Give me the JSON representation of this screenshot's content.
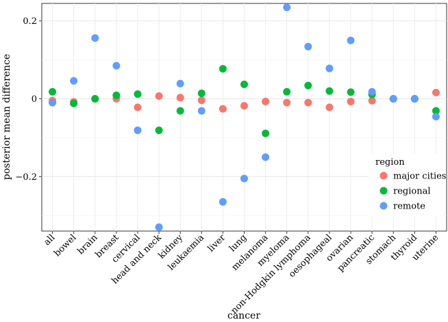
{
  "chart_data": {
    "type": "scatter",
    "title": "",
    "xlabel": "cancer",
    "ylabel": "posterior mean difference",
    "ylim": [
      -0.34,
      0.245
    ],
    "yticks": [
      -0.2,
      0,
      0.2
    ],
    "ytick_labels": [
      "−0.2",
      "0",
      "0.2"
    ],
    "grid": true,
    "legend_position": "right-inside",
    "legend_title": "region",
    "categories": [
      "all",
      "bowel",
      "brain",
      "breast",
      "cervical",
      "head and neck",
      "kidney",
      "leukaemia",
      "liver",
      "lung",
      "melanoma",
      "myeloma",
      "non-Hodgkin lymphoma",
      "oesophageal",
      "ovarian",
      "pancreatic",
      "stomach",
      "thyroid",
      "uterine"
    ],
    "series": [
      {
        "name": "major cities",
        "color": "#F8766D",
        "values": [
          -0.005,
          -0.008,
          0.0,
          0.0,
          -0.022,
          0.007,
          0.003,
          -0.004,
          -0.026,
          -0.018,
          -0.007,
          -0.01,
          -0.01,
          -0.022,
          -0.007,
          -0.005,
          0.0,
          0.0,
          0.016
        ]
      },
      {
        "name": "regional",
        "color": "#00BA38",
        "values": [
          0.018,
          -0.012,
          0.0,
          0.009,
          0.012,
          -0.081,
          -0.031,
          0.014,
          0.077,
          0.037,
          -0.089,
          0.018,
          0.034,
          0.02,
          0.017,
          0.011,
          0.0,
          0.0,
          -0.031
        ]
      },
      {
        "name": "remote",
        "color": "#619CFF",
        "values": [
          -0.01,
          0.046,
          0.156,
          0.085,
          -0.081,
          -0.33,
          0.039,
          -0.031,
          -0.265,
          -0.205,
          -0.15,
          0.235,
          0.134,
          0.078,
          0.15,
          0.018,
          0.0,
          0.0,
          -0.046
        ]
      }
    ]
  }
}
